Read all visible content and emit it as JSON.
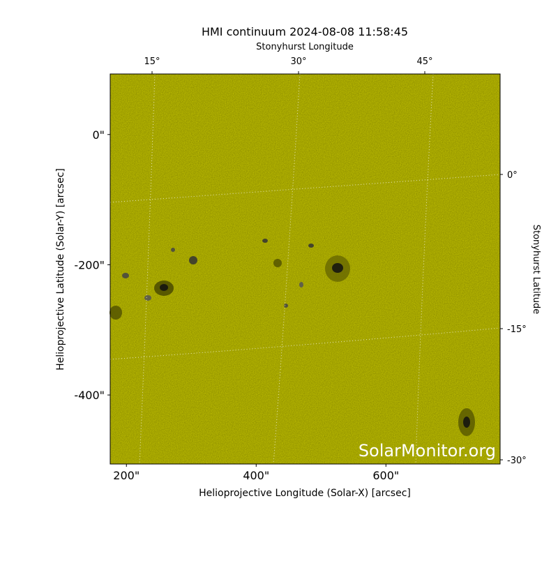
{
  "chart_data": {
    "type": "image",
    "title": "HMI continuum 2024-08-08 11:58:45",
    "xlabel": "Helioprojective Longitude (Solar-X) [arcsec]",
    "ylabel": "Helioprojective Latitude (Solar-Y) [arcsec]",
    "top_label": "Stonyhurst Longitude",
    "right_label": "Stonyhurst Latitude",
    "watermark": "SolarMonitor.org",
    "xlim": [
      175,
      776
    ],
    "ylim": [
      -506,
      93
    ],
    "xticks": [
      {
        "value": 200,
        "label": "200\""
      },
      {
        "value": 400,
        "label": "400\""
      },
      {
        "value": 600,
        "label": "600\""
      }
    ],
    "yticks": [
      {
        "value": 0,
        "label": "0\""
      },
      {
        "value": -200,
        "label": "-200\""
      },
      {
        "value": -400,
        "label": "-400\""
      }
    ],
    "top_ticks": [
      {
        "value": 15,
        "label": "15°"
      },
      {
        "value": 30,
        "label": "30°"
      },
      {
        "value": 45,
        "label": "45°"
      }
    ],
    "right_ticks": [
      {
        "value": 0,
        "label": "0°"
      },
      {
        "value": -15,
        "label": "-15°"
      },
      {
        "value": -30,
        "label": "-30°"
      }
    ],
    "color": "#c8c800"
  }
}
